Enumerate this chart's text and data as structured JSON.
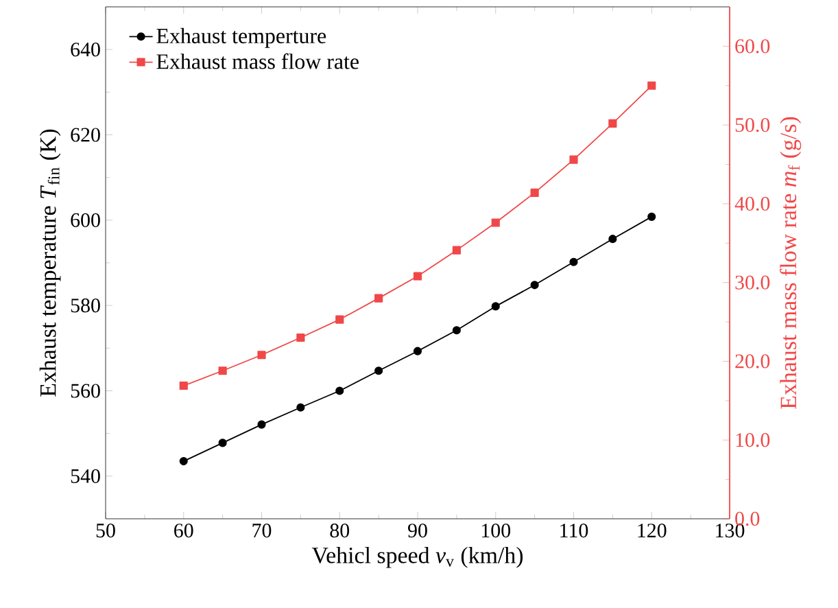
{
  "chart_data": {
    "type": "line",
    "xlabel": "Vehicl speed *v*$_{v}$ (km/h)",
    "ylabel": "Exhaust temperature *T*$_{fin}$ (K)",
    "y2label": "Exhaust mass flow rate *m*$_{f}$ (g/s)",
    "x": [
      60,
      65,
      70,
      75,
      80,
      85,
      90,
      95,
      100,
      105,
      110,
      115,
      120
    ],
    "xlim": [
      50,
      130
    ],
    "xticks": [
      50,
      60,
      70,
      80,
      90,
      100,
      110,
      120,
      130
    ],
    "ylim": [
      530,
      650
    ],
    "yticks": [
      540,
      560,
      580,
      600,
      620,
      640
    ],
    "y2lim": [
      0,
      65
    ],
    "y2ticks": [
      {
        "value": 0,
        "label": "0.0"
      },
      {
        "value": 10,
        "label": "10.0"
      },
      {
        "value": 20,
        "label": "20.0"
      },
      {
        "value": 30,
        "label": "30.0"
      },
      {
        "value": 40,
        "label": "40.0"
      },
      {
        "value": 50,
        "label": "50.0"
      },
      {
        "value": 60,
        "label": "60.0"
      }
    ],
    "legend": "top left",
    "grid": false,
    "line_style": "solid",
    "series": [
      {
        "name": "Exhaust temperture",
        "color": "#000000",
        "marker": "circle",
        "values": [
          543.5,
          547.8,
          552.1,
          556.1,
          560.0,
          564.7,
          569.3,
          574.2,
          579.8,
          584.8,
          590.2,
          595.6,
          600.8
        ]
      },
      {
        "name": "Exhaust mass flow rate",
        "color": "#f04848",
        "marker": "square",
        "axis": "y2",
        "values": [
          16.9,
          18.8,
          20.8,
          23.0,
          25.3,
          28.0,
          30.8,
          34.1,
          37.6,
          41.4,
          45.6,
          50.2,
          55.0
        ]
      }
    ]
  }
}
